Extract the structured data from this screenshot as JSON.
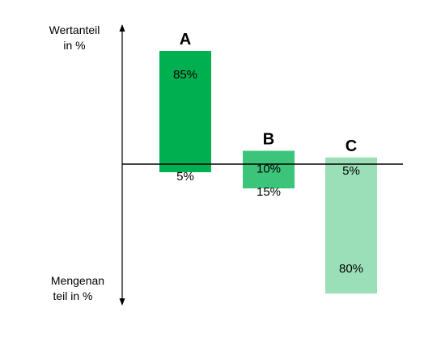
{
  "chart_data": {
    "type": "bar",
    "ylabel_top": [
      "Wertanteil",
      "in %"
    ],
    "ylabel_bottom": [
      "Mengenan",
      "teil in %"
    ],
    "categories": [
      "A",
      "B",
      "C"
    ],
    "series": [
      {
        "values": [
          85,
          10,
          5
        ]
      },
      {
        "values": [
          5,
          15,
          80
        ]
      }
    ],
    "data_labels": {
      "upper": [
        "85%",
        "10%",
        "5%"
      ],
      "lower": [
        "5%",
        "15%",
        "80%"
      ]
    },
    "colors": [
      "#00b050",
      "#3cc57a",
      "#9adfb8"
    ]
  }
}
